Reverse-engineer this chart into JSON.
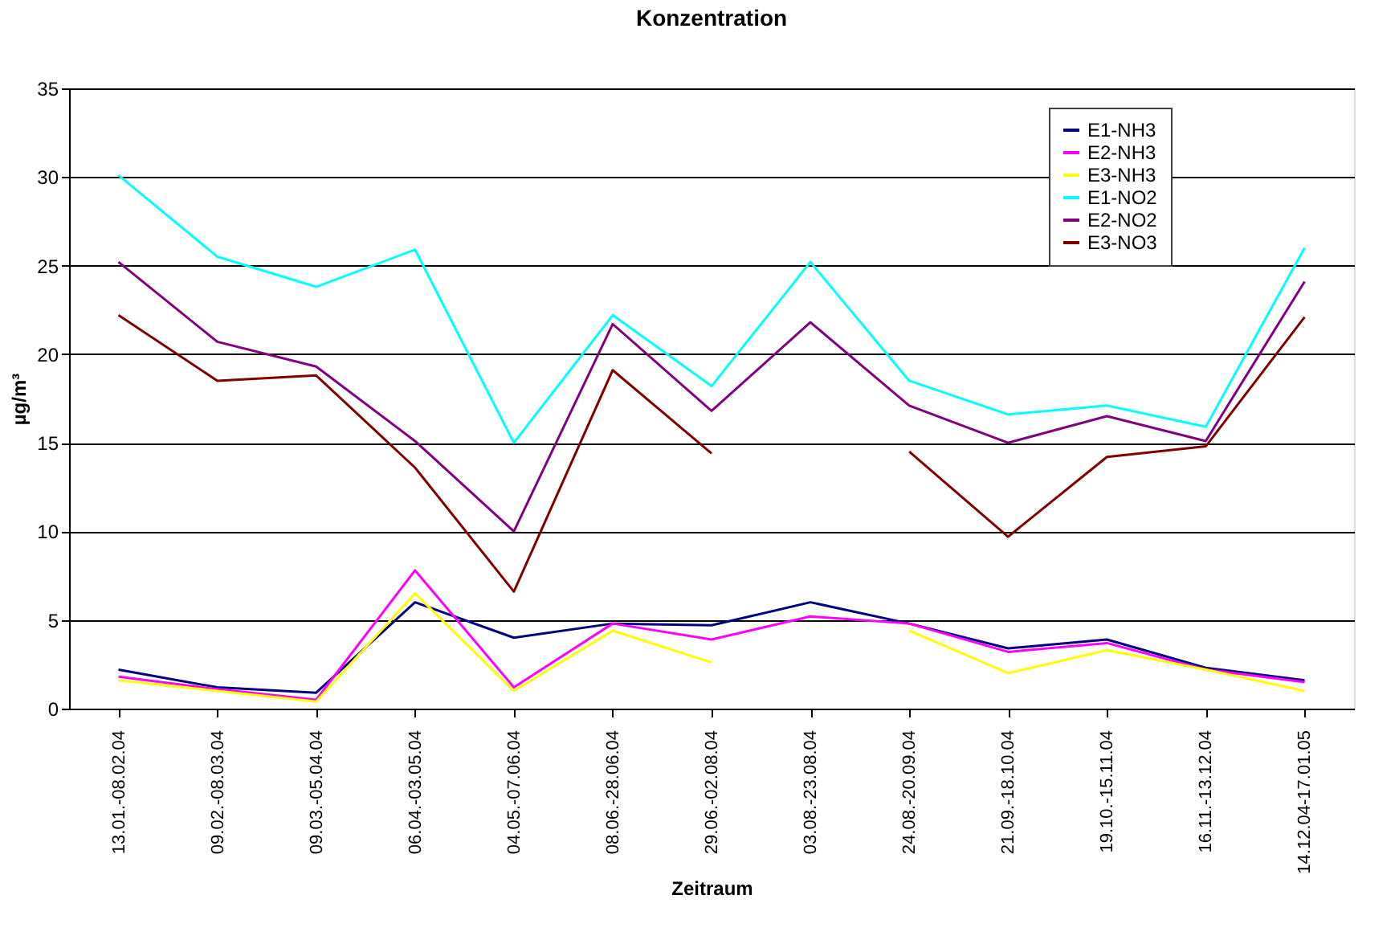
{
  "chart_data": {
    "type": "line",
    "title": "Konzentration",
    "xlabel": "Zeitraum",
    "ylabel": "µg/m³",
    "categories": [
      "13.01.-08.02.04",
      "09.02.-08.03.04",
      "09.03.-05.04.04",
      "06.04.-03.05.04",
      "04.05.-07.06.04",
      "08.06.-28.06.04",
      "29.06.-02.08.04",
      "03.08.-23.08.04",
      "24.08.-20.09.04",
      "21.09.-18.10.04",
      "19.10.-15.11.04",
      "16.11.-13.12.04",
      "14.12.04-17.01.05"
    ],
    "series": [
      {
        "name": "E1-NH3",
        "color": "#000080",
        "values": [
          2.2,
          1.2,
          0.9,
          6.0,
          4.0,
          4.8,
          4.7,
          6.0,
          4.8,
          3.4,
          3.9,
          2.3,
          1.6
        ]
      },
      {
        "name": "E2-NH3",
        "color": "#ff00ff",
        "values": [
          1.8,
          1.1,
          0.5,
          7.8,
          1.2,
          4.8,
          3.9,
          5.2,
          4.8,
          3.2,
          3.7,
          2.2,
          1.5
        ]
      },
      {
        "name": "E3-NH3",
        "color": "#ffff00",
        "values": [
          1.6,
          1.0,
          0.4,
          6.5,
          1.0,
          4.4,
          2.6,
          null,
          4.4,
          2.0,
          3.3,
          2.2,
          1.0
        ]
      },
      {
        "name": "E1-NO2",
        "color": "#00ffff",
        "values": [
          30.1,
          25.5,
          23.8,
          25.9,
          15.0,
          22.2,
          18.2,
          25.2,
          18.5,
          16.6,
          17.1,
          15.9,
          26.0
        ]
      },
      {
        "name": "E2-NO2",
        "color": "#800080",
        "values": [
          25.2,
          20.7,
          19.3,
          15.1,
          10.0,
          21.7,
          16.8,
          21.8,
          17.1,
          15.0,
          16.5,
          15.1,
          24.1
        ]
      },
      {
        "name": "E3-NO3",
        "color": "#800000",
        "values": [
          22.2,
          18.5,
          18.8,
          13.6,
          6.6,
          19.1,
          14.4,
          null,
          14.5,
          9.7,
          14.2,
          14.8,
          22.1
        ]
      }
    ],
    "ylim": [
      0,
      35
    ],
    "yticks": [
      0,
      5,
      10,
      15,
      20,
      25,
      30,
      35
    ],
    "grid": "y",
    "legend": "top right",
    "marker": "none",
    "line_style": "solid"
  }
}
